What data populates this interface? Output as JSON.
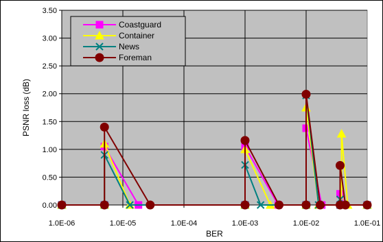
{
  "chart_data": {
    "type": "line",
    "title": "",
    "xlabel": "BER",
    "ylabel": "PSNR loss (dB)",
    "x_scale": "log",
    "xlim": [
      1e-06,
      0.1
    ],
    "ylim": [
      0,
      3.5
    ],
    "grid": true,
    "legend_position": "top-left",
    "plot_background": "#c0c0c0",
    "x_tick_labels": [
      "1.0E-06",
      "1.0E-05",
      "1.0E-04",
      "1.0E-03",
      "1.0E-02",
      "1.0E-01"
    ],
    "x_tick_values": [
      1e-06,
      1e-05,
      0.0001,
      0.001,
      0.01,
      0.1
    ],
    "y_tick_labels": [
      "0.00",
      "0.50",
      "1.00",
      "1.50",
      "2.00",
      "2.50",
      "3.00",
      "3.50"
    ],
    "y_tick_values": [
      0,
      0.5,
      1.0,
      1.5,
      2.0,
      2.5,
      3.0,
      3.5
    ],
    "series": [
      {
        "name": "Coastguard",
        "color": "#ff00ff",
        "marker": "square",
        "points": [
          [
            1e-06,
            0
          ],
          [
            5e-06,
            0
          ],
          [
            5e-06,
            1.05
          ],
          [
            1.8e-05,
            0
          ],
          [
            0.001,
            0
          ],
          [
            0.001,
            1.05
          ],
          [
            0.0035,
            0
          ],
          [
            0.01,
            0
          ],
          [
            0.01,
            1.38
          ],
          [
            0.018,
            0
          ],
          [
            0.036,
            0
          ],
          [
            0.036,
            0.2
          ],
          [
            0.042,
            0
          ],
          [
            0.1,
            0
          ]
        ]
      },
      {
        "name": "Container",
        "color": "#ffff00",
        "marker": "triangle",
        "points": [
          [
            1e-06,
            0
          ],
          [
            5e-06,
            0
          ],
          [
            5e-06,
            1.1
          ],
          [
            1.3e-05,
            0
          ],
          [
            0.001,
            0
          ],
          [
            0.001,
            1.0
          ],
          [
            0.0026,
            0
          ],
          [
            0.01,
            0
          ],
          [
            0.01,
            1.75
          ],
          [
            0.016,
            0
          ],
          [
            0.038,
            0
          ],
          [
            0.038,
            1.28
          ],
          [
            0.048,
            0
          ],
          [
            0.1,
            0
          ]
        ]
      },
      {
        "name": "News",
        "color": "#008080",
        "marker": "x",
        "points": [
          [
            1e-06,
            0
          ],
          [
            5e-06,
            0
          ],
          [
            5e-06,
            0.9
          ],
          [
            1.3e-05,
            0
          ],
          [
            0.001,
            0
          ],
          [
            0.001,
            0.72
          ],
          [
            0.0018,
            0
          ],
          [
            0.01,
            0
          ],
          [
            0.01,
            1.97
          ],
          [
            0.016,
            0
          ],
          [
            0.036,
            0
          ],
          [
            0.036,
            0.1
          ],
          [
            0.04,
            0
          ],
          [
            0.1,
            0
          ]
        ]
      },
      {
        "name": "Foreman",
        "color": "#800000",
        "marker": "circle",
        "points": [
          [
            1e-06,
            0
          ],
          [
            5e-06,
            0
          ],
          [
            5e-06,
            1.4
          ],
          [
            2.8e-05,
            0
          ],
          [
            0.001,
            0
          ],
          [
            0.001,
            1.16
          ],
          [
            0.0036,
            0
          ],
          [
            0.01,
            0
          ],
          [
            0.01,
            1.99
          ],
          [
            0.017,
            0
          ],
          [
            0.036,
            0
          ],
          [
            0.036,
            0.71
          ],
          [
            0.044,
            0
          ],
          [
            0.1,
            0
          ]
        ]
      }
    ]
  }
}
